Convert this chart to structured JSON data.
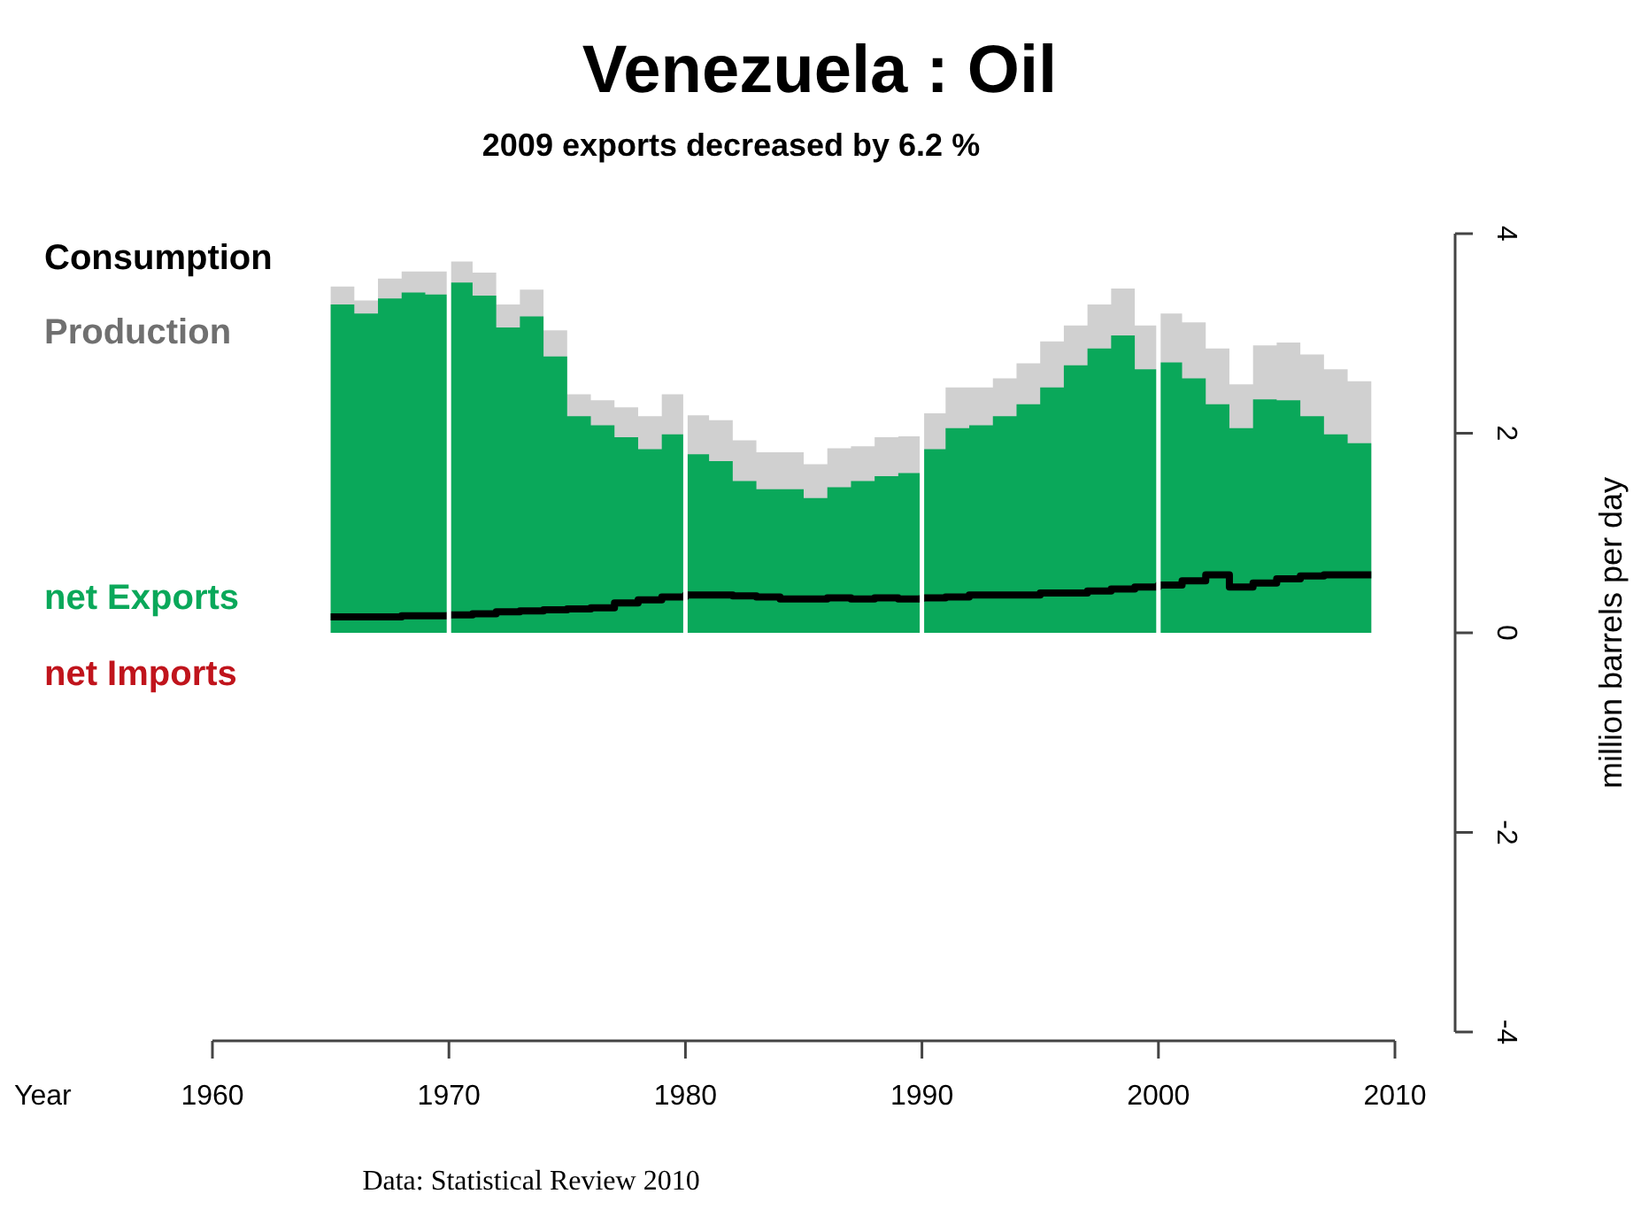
{
  "chart_data": {
    "type": "area",
    "title": "Venezuela :  Oil",
    "subtitle": "2009 exports decreased by 6.2 %",
    "xlabel": "Year",
    "ylabel": "million barrels per day",
    "x": [
      1965,
      1966,
      1967,
      1968,
      1969,
      1970,
      1971,
      1972,
      1973,
      1974,
      1975,
      1976,
      1977,
      1978,
      1979,
      1980,
      1981,
      1982,
      1983,
      1984,
      1985,
      1986,
      1987,
      1988,
      1989,
      1990,
      1991,
      1992,
      1993,
      1994,
      1995,
      1996,
      1997,
      1998,
      1999,
      2000,
      2001,
      2002,
      2003,
      2004,
      2005,
      2006,
      2007,
      2008,
      2009
    ],
    "series": [
      {
        "name": "Consumption",
        "type": "step",
        "color": "#000000",
        "values": [
          0.16,
          0.16,
          0.16,
          0.17,
          0.17,
          0.18,
          0.19,
          0.21,
          0.22,
          0.23,
          0.24,
          0.25,
          0.3,
          0.33,
          0.36,
          0.38,
          0.38,
          0.37,
          0.36,
          0.34,
          0.34,
          0.35,
          0.34,
          0.35,
          0.34,
          0.35,
          0.36,
          0.38,
          0.38,
          0.38,
          0.4,
          0.4,
          0.42,
          0.44,
          0.46,
          0.48,
          0.52,
          0.58,
          0.46,
          0.5,
          0.54,
          0.57,
          0.58,
          0.58,
          0.58
        ]
      },
      {
        "name": "Production",
        "color": "#d0d0d0",
        "values": [
          3.47,
          3.33,
          3.55,
          3.62,
          3.62,
          3.72,
          3.61,
          3.29,
          3.44,
          3.03,
          2.39,
          2.33,
          2.26,
          2.17,
          2.39,
          2.18,
          2.13,
          1.93,
          1.81,
          1.81,
          1.69,
          1.85,
          1.87,
          1.96,
          1.97,
          2.2,
          2.46,
          2.46,
          2.55,
          2.7,
          2.92,
          3.08,
          3.29,
          3.45,
          3.08,
          3.2,
          3.11,
          2.85,
          2.49,
          2.88,
          2.91,
          2.79,
          2.64,
          2.52,
          2.39
        ]
      },
      {
        "name": "net Exports",
        "color": "#0aa85a",
        "values": [
          3.29,
          3.2,
          3.35,
          3.41,
          3.39,
          3.51,
          3.38,
          3.06,
          3.17,
          2.77,
          2.17,
          2.08,
          1.96,
          1.84,
          1.99,
          1.79,
          1.72,
          1.52,
          1.44,
          1.44,
          1.35,
          1.46,
          1.52,
          1.57,
          1.6,
          1.84,
          2.05,
          2.08,
          2.17,
          2.29,
          2.46,
          2.68,
          2.85,
          2.98,
          2.64,
          2.71,
          2.55,
          2.29,
          2.05,
          2.34,
          2.33,
          2.17,
          1.99,
          1.9,
          1.79
        ]
      },
      {
        "name": "net Imports",
        "color": "#c0141c",
        "values": [
          null,
          null,
          null,
          null,
          null,
          null,
          null,
          null,
          null,
          null,
          null,
          null,
          null,
          null,
          null,
          null,
          null,
          null,
          null,
          null,
          null,
          null,
          null,
          null,
          null,
          null,
          null,
          null,
          null,
          null,
          null,
          null,
          null,
          null,
          null,
          null,
          null,
          null,
          null,
          null,
          null,
          null,
          null,
          null,
          null
        ]
      }
    ],
    "xlim": [
      1960,
      2010
    ],
    "xticks": [
      1960,
      1970,
      1980,
      1990,
      2000,
      2010
    ],
    "ylim": [
      -4,
      4
    ],
    "yticks": [
      -4,
      -2,
      0,
      2,
      4
    ],
    "ref_lines": [
      {
        "axis": "x",
        "value": 1970,
        "color": "#ffffff"
      },
      {
        "axis": "x",
        "value": 1980,
        "color": "#ffffff"
      },
      {
        "axis": "x",
        "value": 1990,
        "color": "#ffffff"
      },
      {
        "axis": "x",
        "value": 2000,
        "color": "#ffffff"
      }
    ],
    "legend": "left",
    "annotations": [
      "Data: Statistical Review 2010"
    ]
  }
}
